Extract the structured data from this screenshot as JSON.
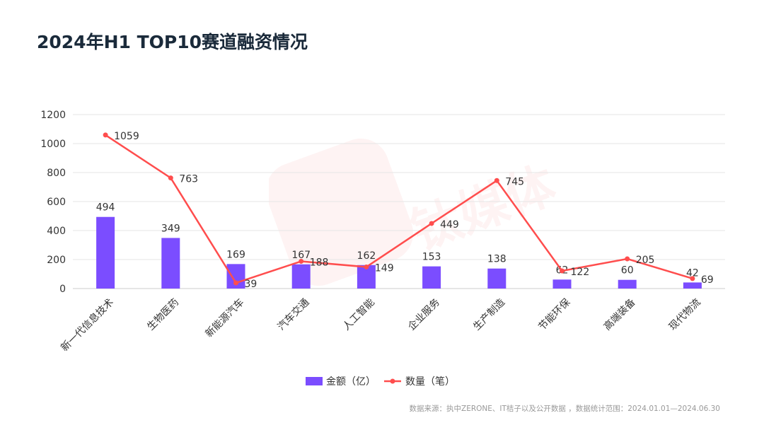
{
  "title": "2024年H1  TOP10赛道融资情况",
  "source": "数据来源：执中ZERONE、IT桔子以及公开数据 ，数据统计范围：2024.01.01—2024.06.30",
  "watermark": "钛媒体 TMTPOST",
  "chart_data": {
    "type": "bar+line",
    "categories": [
      "新一代信息技术",
      "生物医药",
      "新能源汽车",
      "汽车交通",
      "人工智能",
      "企业服务",
      "生产制造",
      "节能环保",
      "高端装备",
      "现代物流"
    ],
    "series": [
      {
        "name": "金额（亿）",
        "type": "bar",
        "color": "#7b4dff",
        "values": [
          494,
          349,
          169,
          167,
          162,
          153,
          138,
          62,
          60,
          42
        ]
      },
      {
        "name": "数量（笔）",
        "type": "line",
        "color": "#ff4d4d",
        "values": [
          1059,
          763,
          39,
          188,
          149,
          449,
          745,
          122,
          205,
          69
        ]
      }
    ],
    "yticks": [
      "0",
      "200",
      "400",
      "600",
      "800",
      "1000",
      "1200"
    ],
    "ylim": [
      0,
      1200
    ],
    "grid": true,
    "legend": "bottom"
  }
}
